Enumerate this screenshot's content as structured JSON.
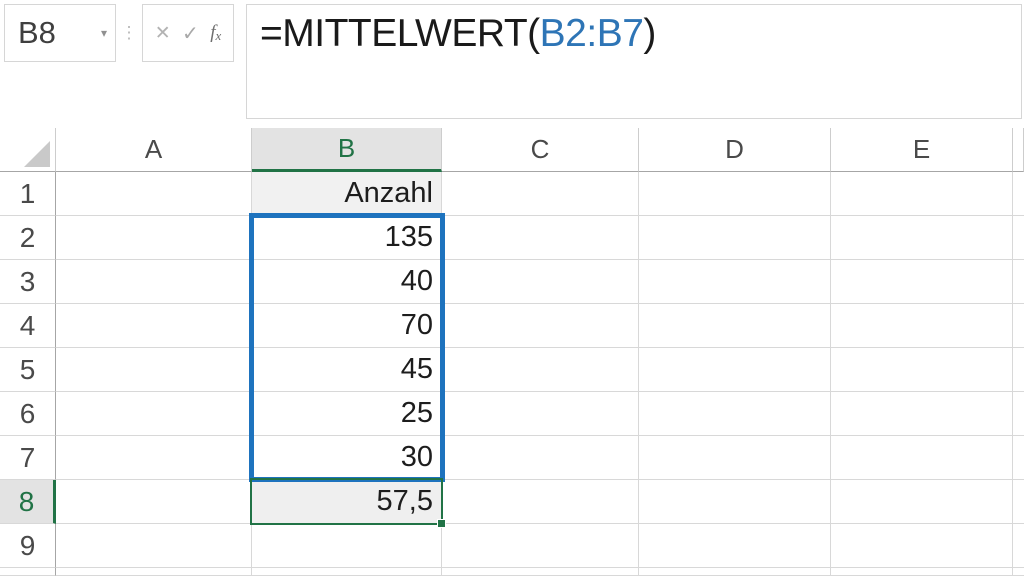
{
  "name_box": {
    "value": "B8"
  },
  "formula": {
    "prefix": "=MITTELWERT(",
    "range": "B2:B7",
    "suffix": ")"
  },
  "icons": {
    "caret": "▾",
    "dots": "⋮",
    "cancel": "✕",
    "enter": "✓",
    "fx_f": "f",
    "fx_x": "x"
  },
  "grid": {
    "columns": [
      "A",
      "B",
      "C",
      "D",
      "E"
    ],
    "rows": [
      "1",
      "2",
      "3",
      "4",
      "5",
      "6",
      "7",
      "8",
      "9"
    ],
    "cells": {
      "B1": "Anzahl",
      "B2": "135",
      "B3": "40",
      "B4": "70",
      "B5": "45",
      "B6": "25",
      "B7": "30",
      "B8": "57,5"
    }
  },
  "selection": {
    "selected_range": "B2:B7",
    "active_cell": "B8",
    "selected_column": "B",
    "selected_row": "8"
  },
  "colors": {
    "accent_green": "#217346",
    "selection_blue": "#1e73be",
    "formula_ref_blue": "#2e75b6",
    "header_highlight_fill": "#e3e3e3",
    "active_cell_fill": "#efefef",
    "b1_fill": "#f1f1f1",
    "gridline": "#d8d8d8"
  }
}
